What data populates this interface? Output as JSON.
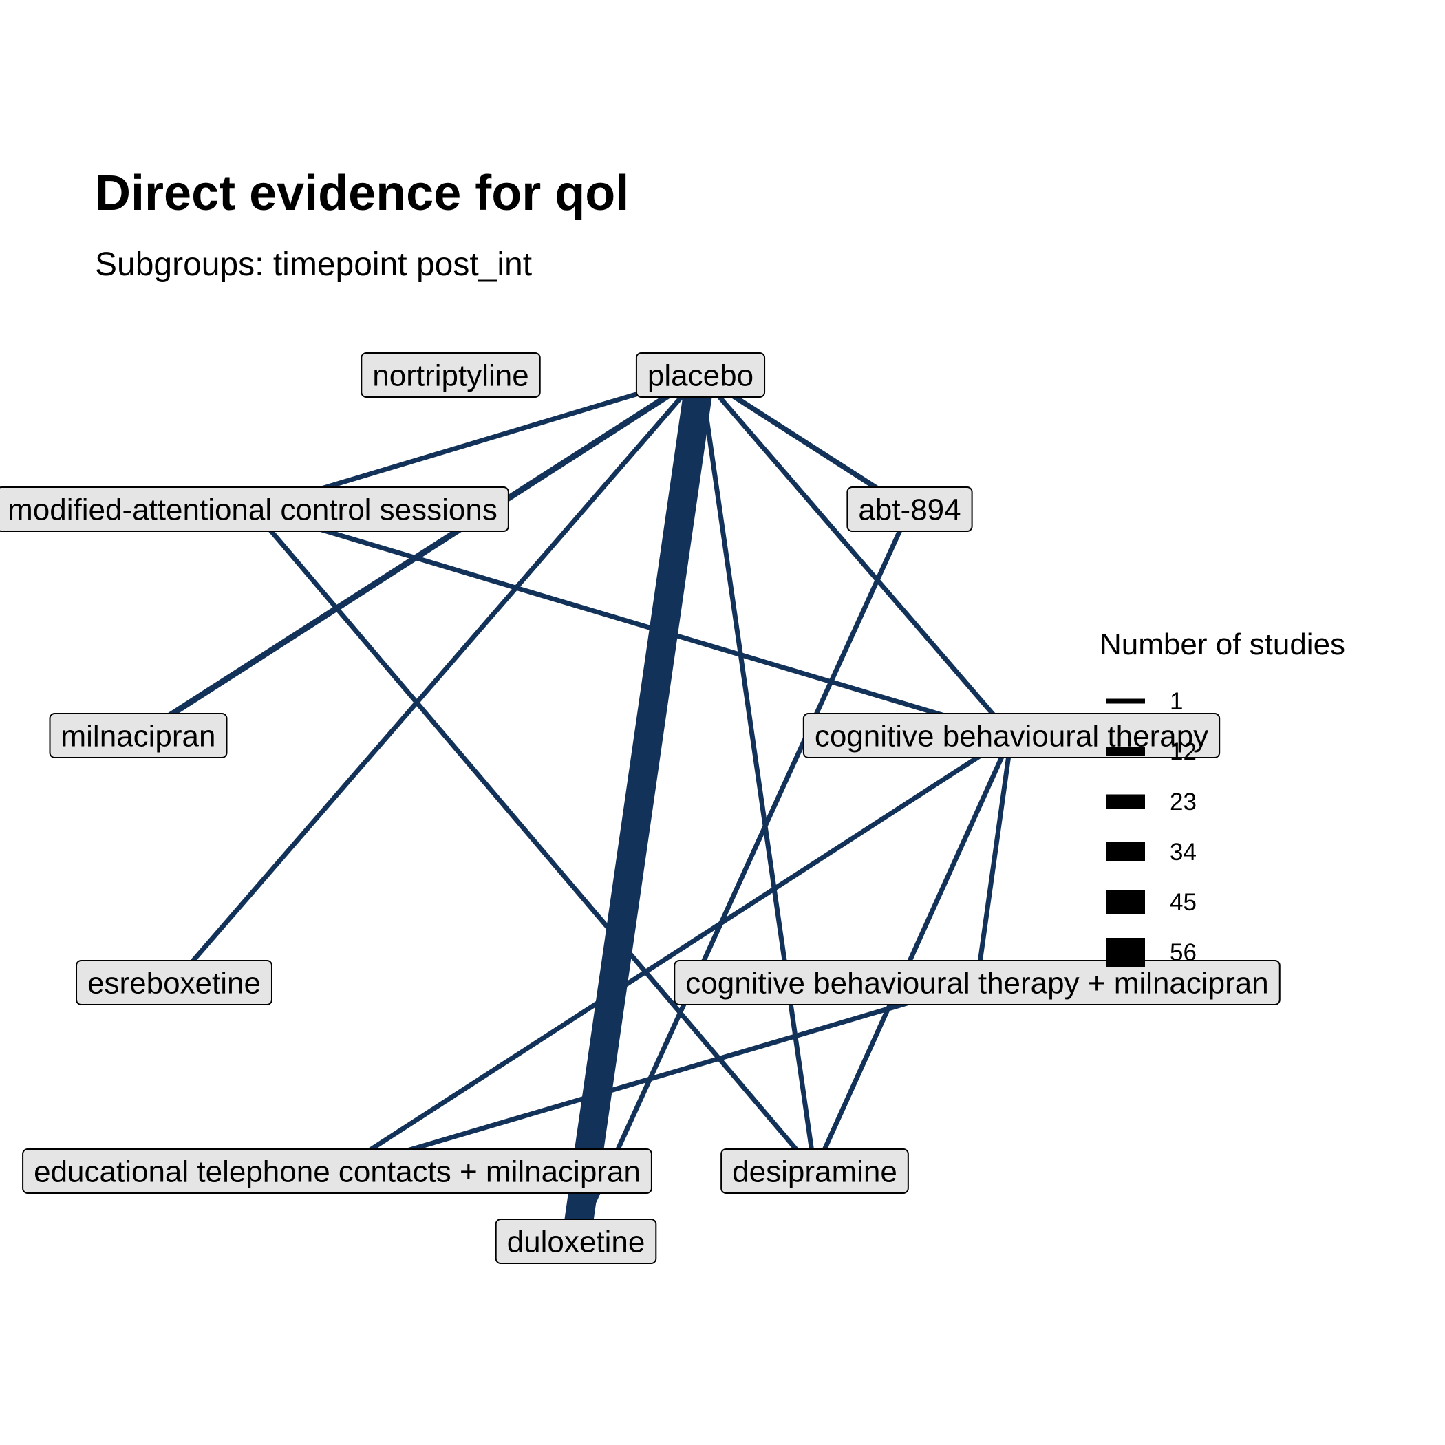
{
  "title": "Direct evidence for qol",
  "subtitle": "Subgroups: timepoint post_int",
  "colors": {
    "edge": "#12325a",
    "node_fill": "#e5e5e5",
    "node_border": "#000000",
    "legend_key": "#000000"
  },
  "legend": {
    "title": "Number of studies",
    "entries": [
      {
        "label": "1",
        "studies": 1
      },
      {
        "label": "12",
        "studies": 12
      },
      {
        "label": "23",
        "studies": 23
      },
      {
        "label": "34",
        "studies": 34
      },
      {
        "label": "45",
        "studies": 45
      },
      {
        "label": "56",
        "studies": 56
      }
    ]
  },
  "nodes": [
    {
      "id": "nortriptyline",
      "label": "nortriptyline"
    },
    {
      "id": "placebo",
      "label": "placebo"
    },
    {
      "id": "macs",
      "label": "modified-attentional control sessions"
    },
    {
      "id": "abt894",
      "label": "abt-894"
    },
    {
      "id": "milnacipran",
      "label": "milnacipran"
    },
    {
      "id": "cbt",
      "label": "cognitive behavioural therapy"
    },
    {
      "id": "esreboxetine",
      "label": "esreboxetine"
    },
    {
      "id": "cbtm",
      "label": "cognitive behavioural therapy + milnacipran"
    },
    {
      "id": "etcm",
      "label": "educational telephone contacts + milnacipran"
    },
    {
      "id": "desipramine",
      "label": "desipramine"
    },
    {
      "id": "duloxetine",
      "label": "duloxetine"
    }
  ],
  "edges": [
    {
      "from": "placebo",
      "to": "duloxetine",
      "studies": 56
    },
    {
      "from": "placebo",
      "to": "milnacipran",
      "studies": 4
    },
    {
      "from": "placebo",
      "to": "abt894",
      "studies": 2
    },
    {
      "from": "placebo",
      "to": "macs",
      "studies": 1
    },
    {
      "from": "placebo",
      "to": "esreboxetine",
      "studies": 1
    },
    {
      "from": "placebo",
      "to": "desipramine",
      "studies": 1
    },
    {
      "from": "placebo",
      "to": "cbt",
      "studies": 1
    },
    {
      "from": "macs",
      "to": "cbt",
      "studies": 1
    },
    {
      "from": "macs",
      "to": "desipramine",
      "studies": 1
    },
    {
      "from": "abt894",
      "to": "duloxetine",
      "studies": 1
    },
    {
      "from": "cbt",
      "to": "etcm",
      "studies": 1
    },
    {
      "from": "cbt",
      "to": "desipramine",
      "studies": 1
    },
    {
      "from": "cbt",
      "to": "cbtm",
      "studies": 1
    },
    {
      "from": "cbtm",
      "to": "etcm",
      "studies": 1
    }
  ]
}
